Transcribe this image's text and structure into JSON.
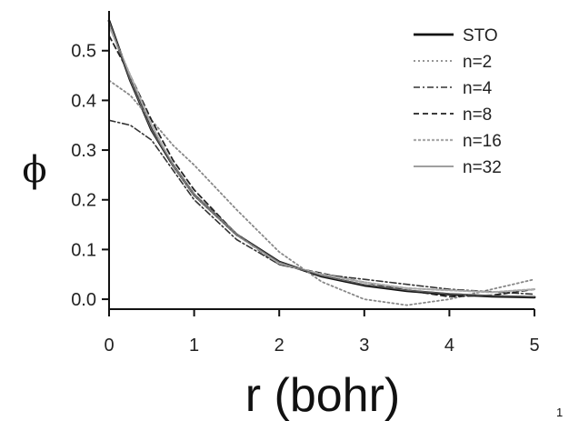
{
  "chart_data": {
    "type": "line",
    "title": "",
    "xlabel": "r (bohr)",
    "ylabel": "ϕ",
    "xlim": [
      0,
      5
    ],
    "ylim": [
      -0.02,
      0.58
    ],
    "xticks": [
      0,
      1,
      2,
      3,
      4,
      5
    ],
    "xtick_labels": [
      "0",
      "1",
      "2",
      "3",
      "4",
      "5"
    ],
    "yticks": [
      0.0,
      0.1,
      0.2,
      0.3,
      0.4,
      0.5
    ],
    "ytick_labels": [
      "0.0",
      "0.1",
      "0.2",
      "0.3",
      "0.4",
      "0.5"
    ],
    "grid": false,
    "legend_position": "top-right",
    "series": [
      {
        "name": "STO",
        "color": "#111111",
        "dash": "solid",
        "x": [
          0,
          0.25,
          0.5,
          0.75,
          1.0,
          1.5,
          2.0,
          2.5,
          3.0,
          3.5,
          4.0,
          4.5,
          5.0
        ],
        "y": [
          0.56,
          0.44,
          0.34,
          0.27,
          0.21,
          0.13,
          0.075,
          0.046,
          0.028,
          0.017,
          0.01,
          0.006,
          0.004
        ]
      },
      {
        "name": "n=2",
        "color": "#888888",
        "dash": "dotted",
        "x": [
          0,
          0.25,
          0.5,
          0.75,
          1.0,
          1.5,
          2.0,
          2.5,
          3.0,
          3.5,
          4.0,
          4.5,
          5.0
        ],
        "y": [
          0.44,
          0.41,
          0.36,
          0.31,
          0.27,
          0.18,
          0.095,
          0.035,
          0.0,
          -0.012,
          0.0,
          0.02,
          0.04
        ]
      },
      {
        "name": "n=4",
        "color": "#333333",
        "dash": "dashdot",
        "x": [
          0,
          0.25,
          0.5,
          0.75,
          1.0,
          1.5,
          2.0,
          2.5,
          3.0,
          3.5,
          4.0,
          4.5,
          5.0
        ],
        "y": [
          0.36,
          0.35,
          0.32,
          0.26,
          0.2,
          0.12,
          0.07,
          0.05,
          0.04,
          0.03,
          0.02,
          0.015,
          0.01
        ]
      },
      {
        "name": "n=8",
        "color": "#222222",
        "dash": "dashed",
        "x": [
          0,
          0.25,
          0.5,
          0.75,
          1.0,
          1.5,
          2.0,
          2.5,
          3.0,
          3.5,
          4.0,
          4.5,
          5.0
        ],
        "y": [
          0.53,
          0.45,
          0.36,
          0.28,
          0.22,
          0.13,
          0.07,
          0.052,
          0.034,
          0.018,
          0.005,
          0.008,
          0.02
        ]
      },
      {
        "name": "n=16",
        "color": "#aaaaaa",
        "dash": "dense-dash",
        "x": [
          0,
          0.25,
          0.5,
          0.75,
          1.0,
          1.5,
          2.0,
          2.5,
          3.0,
          3.5,
          4.0,
          4.5,
          5.0
        ],
        "y": [
          0.55,
          0.45,
          0.35,
          0.27,
          0.21,
          0.13,
          0.072,
          0.05,
          0.034,
          0.022,
          0.018,
          0.014,
          0.02
        ]
      },
      {
        "name": "n=32",
        "color": "#666666",
        "dash": "solid-thin",
        "x": [
          0,
          0.25,
          0.5,
          0.75,
          1.0,
          1.5,
          2.0,
          2.5,
          3.0,
          3.5,
          4.0,
          4.5,
          5.0
        ],
        "y": [
          0.56,
          0.44,
          0.34,
          0.27,
          0.21,
          0.13,
          0.075,
          0.047,
          0.029,
          0.018,
          0.011,
          0.007,
          0.005
        ]
      }
    ]
  },
  "page": {
    "number": "1"
  }
}
